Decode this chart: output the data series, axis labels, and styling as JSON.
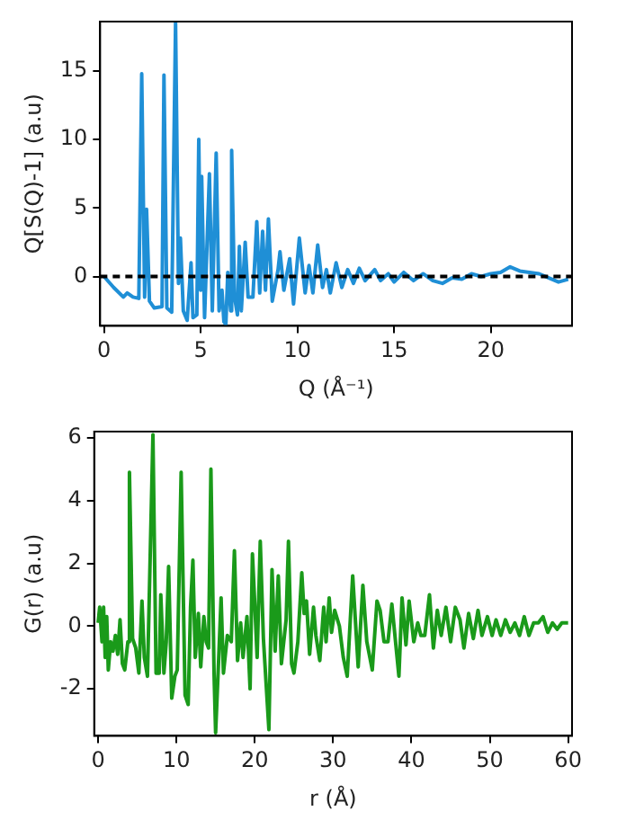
{
  "chart_data": [
    {
      "type": "line",
      "xlabel": "Q (Å⁻¹)",
      "ylabel": "Q[S(Q)-1] (a.u)",
      "xlim": [
        -0.2,
        24.2
      ],
      "ylim": [
        -3.6,
        18.6
      ],
      "xticks": [
        0,
        5,
        10,
        15,
        20
      ],
      "yticks": [
        0,
        5,
        10,
        15
      ],
      "grid": false,
      "legend": false,
      "marker": "none",
      "line_style": "solid",
      "ref_lines": [
        {
          "axis": "y",
          "value": 0,
          "color": "#000000",
          "line_style": "dashed"
        }
      ],
      "series": [
        {
          "color": "#1f8fd6",
          "x": [
            0,
            0.5,
            1,
            1.2,
            1.5,
            1.8,
            1.95,
            2.1,
            2.2,
            2.35,
            2.6,
            3.0,
            3.1,
            3.25,
            3.5,
            3.7,
            3.85,
            3.95,
            4.1,
            4.3,
            4.5,
            4.6,
            4.8,
            4.9,
            5.0,
            5.05,
            5.2,
            5.45,
            5.6,
            5.8,
            5.95,
            6.1,
            6.2,
            6.3,
            6.4,
            6.55,
            6.6,
            6.75,
            6.9,
            7.0,
            7.1,
            7.3,
            7.45,
            7.7,
            7.9,
            8.05,
            8.2,
            8.35,
            8.5,
            8.7,
            9.0,
            9.1,
            9.3,
            9.6,
            9.8,
            10.1,
            10.4,
            10.6,
            10.8,
            11.05,
            11.3,
            11.5,
            11.7,
            12.0,
            12.3,
            12.6,
            12.9,
            13.2,
            13.5,
            14.0,
            14.3,
            14.7,
            15.0,
            15.5,
            16.0,
            16.5,
            17.0,
            17.5,
            18.0,
            18.5,
            19.0,
            19.5,
            20.0,
            20.5,
            21.0,
            21.5,
            22.0,
            22.5,
            23.0,
            23.5,
            24.0
          ],
          "values": [
            0,
            -0.8,
            -1.5,
            -1.2,
            -1.5,
            -1.6,
            14.8,
            -1.5,
            4.9,
            -1.8,
            -2.3,
            -2.2,
            14.7,
            -2.3,
            -2.6,
            18.5,
            -0.5,
            2.8,
            -2.5,
            -3.2,
            1.0,
            -3.0,
            -2.8,
            10.0,
            -1.0,
            7.3,
            -3.0,
            7.5,
            -2.5,
            9.0,
            -2.5,
            -1.0,
            -3.3,
            -3.5,
            0.3,
            -2.5,
            9.2,
            -1.5,
            -2.8,
            2.2,
            -2.5,
            2.5,
            -1.5,
            -1.5,
            4.0,
            -1.2,
            3.3,
            -1.0,
            4.2,
            -1.8,
            0.5,
            1.8,
            -1.0,
            1.3,
            -2.0,
            2.8,
            -1.2,
            0.8,
            -1.2,
            2.3,
            -0.8,
            0.5,
            -1.2,
            1.0,
            -0.8,
            0.5,
            -0.5,
            0.6,
            -0.3,
            0.5,
            -0.3,
            0.2,
            -0.4,
            0.3,
            -0.3,
            0.2,
            -0.3,
            -0.5,
            -0.1,
            -0.2,
            0.2,
            0.0,
            0.2,
            0.3,
            0.7,
            0.4,
            0.3,
            0.2,
            -0.1,
            -0.4,
            -0.2
          ]
        }
      ]
    },
    {
      "type": "line",
      "xlabel": "r (Å)",
      "ylabel": "G(r) (a.u)",
      "xlim": [
        -0.5,
        60.5
      ],
      "ylim": [
        -3.5,
        6.2
      ],
      "xticks": [
        0,
        10,
        20,
        30,
        40,
        50,
        60
      ],
      "yticks": [
        -2,
        0,
        2,
        4,
        6
      ],
      "grid": false,
      "legend": false,
      "marker": "none",
      "line_style": "solid",
      "series": [
        {
          "color": "#1a9a1a",
          "x": [
            0,
            0.2,
            0.5,
            0.7,
            0.9,
            1.1,
            1.3,
            1.6,
            1.9,
            2.2,
            2.5,
            2.8,
            3.1,
            3.4,
            3.8,
            4.0,
            4.4,
            4.8,
            5.2,
            5.6,
            5.9,
            6.3,
            7.0,
            7.4,
            7.8,
            8.0,
            8.4,
            8.7,
            9.0,
            9.4,
            9.8,
            10.1,
            10.6,
            11.1,
            11.5,
            11.8,
            12.1,
            12.4,
            12.8,
            13.1,
            13.5,
            13.8,
            14.1,
            14.4,
            14.8,
            15.0,
            15.4,
            15.7,
            16.0,
            16.5,
            17.0,
            17.4,
            17.8,
            18.2,
            18.5,
            19.0,
            19.4,
            19.7,
            20.0,
            20.3,
            20.7,
            21.1,
            21.8,
            22.2,
            22.6,
            23.0,
            23.4,
            24.0,
            24.3,
            24.7,
            25.0,
            25.5,
            26.0,
            26.3,
            26.6,
            27.0,
            27.5,
            27.8,
            28.3,
            28.8,
            29.1,
            29.5,
            29.8,
            30.2,
            30.8,
            31.3,
            31.8,
            32.5,
            33.2,
            33.8,
            34.3,
            35.0,
            35.6,
            36.0,
            36.5,
            37.0,
            37.5,
            38.4,
            38.8,
            39.3,
            39.7,
            40.3,
            40.8,
            41.2,
            41.7,
            42.3,
            42.8,
            43.3,
            43.8,
            44.4,
            45.0,
            45.6,
            46.2,
            46.7,
            47.3,
            47.9,
            48.5,
            49.0,
            49.7,
            50.3,
            50.8,
            51.4,
            52.0,
            52.6,
            53.2,
            53.8,
            54.4,
            55.0,
            55.6,
            56.2,
            56.8,
            57.4,
            58.0,
            58.6,
            59.2,
            60.0
          ],
          "values": [
            0.1,
            0.6,
            -0.5,
            0.6,
            -1.0,
            0.3,
            -1.4,
            -0.5,
            -0.8,
            -0.3,
            -0.9,
            0.2,
            -1.2,
            -1.4,
            -0.5,
            4.9,
            -0.4,
            -0.7,
            -1.5,
            0.8,
            -1.0,
            -1.6,
            6.1,
            -1.5,
            -1.5,
            1.0,
            -1.5,
            -0.5,
            1.9,
            -2.3,
            -1.6,
            -1.4,
            4.9,
            -2.2,
            -2.5,
            0.6,
            2.1,
            -1.0,
            0.4,
            -1.3,
            0.3,
            -0.5,
            -0.7,
            5.0,
            -1.5,
            -3.4,
            -1.0,
            0.9,
            -1.5,
            -0.3,
            -0.5,
            2.4,
            -1.1,
            0.1,
            -1.0,
            0.3,
            -2.0,
            2.3,
            0.7,
            -1.0,
            2.7,
            -0.4,
            -3.3,
            1.8,
            -0.8,
            1.6,
            -1.2,
            0.2,
            2.7,
            -1.2,
            -1.5,
            -0.5,
            1.7,
            0.4,
            0.8,
            -0.9,
            0.6,
            -0.3,
            -1.1,
            0.6,
            -0.5,
            0.9,
            -0.2,
            0.5,
            0.0,
            -1.0,
            -1.6,
            1.6,
            -1.3,
            1.3,
            -0.5,
            -1.4,
            0.8,
            0.5,
            -0.5,
            -0.5,
            0.7,
            -1.6,
            0.9,
            -0.6,
            0.8,
            -0.5,
            0.1,
            -0.3,
            -0.3,
            1.0,
            -0.7,
            0.5,
            -0.3,
            0.6,
            -0.5,
            0.6,
            0.2,
            -0.7,
            0.4,
            -0.4,
            0.5,
            -0.3,
            0.3,
            -0.3,
            0.2,
            -0.3,
            0.2,
            -0.2,
            0.1,
            -0.3,
            0.3,
            -0.3,
            0.1,
            0.1,
            0.3,
            -0.2,
            0.1,
            -0.1,
            0.1,
            0.1
          ]
        }
      ]
    }
  ]
}
